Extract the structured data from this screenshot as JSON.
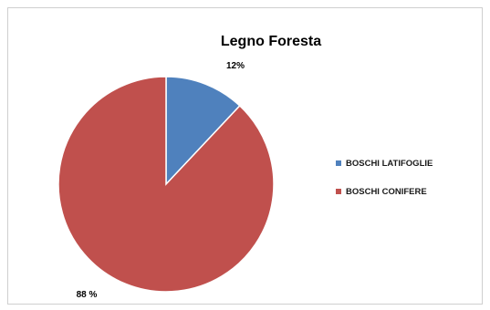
{
  "chart_data": {
    "type": "pie",
    "title": "Legno Foresta",
    "slices": [
      {
        "label": "BOSCHI LATIFOGLIE",
        "value": 12,
        "data_label": "12%",
        "color": "#4f81bd"
      },
      {
        "label": "BOSCHI CONIFERE",
        "value": 88,
        "data_label": "88 %",
        "color": "#c0504d"
      }
    ],
    "legend_position": "right"
  }
}
